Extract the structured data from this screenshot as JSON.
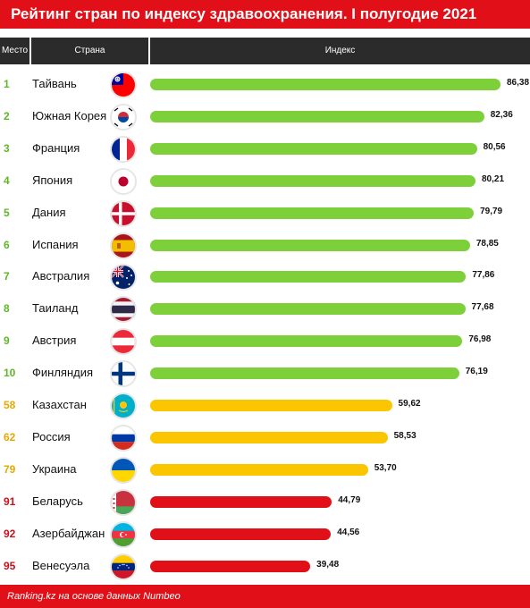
{
  "title": "Рейтинг стран по индексу здравоохранения. I полугодие 2021",
  "header": {
    "place": "Место",
    "country": "Страна",
    "index": "Индекс"
  },
  "footer": "Ranking.kz на основе данных Numbeo",
  "colors": {
    "top": "#7ed03a",
    "mid": "#fbc500",
    "low": "#e10f17",
    "title_bg": "#e10f17",
    "header_bg": "#2b2b2b"
  },
  "chart_data": {
    "type": "bar",
    "title": "Рейтинг стран по индексу здравоохранения. I полугодие 2021",
    "xlabel": "Индекс",
    "ylabel": "Страна",
    "rows": [
      {
        "rank": "1",
        "country": "Тайвань",
        "value": 86.38,
        "label": "86,38",
        "group": "top",
        "flag": "taiwan-flag-icon"
      },
      {
        "rank": "2",
        "country": "Южная Корея",
        "value": 82.36,
        "label": "82,36",
        "group": "top",
        "flag": "south-korea-flag-icon"
      },
      {
        "rank": "3",
        "country": "Франция",
        "value": 80.56,
        "label": "80,56",
        "group": "top",
        "flag": "france-flag-icon"
      },
      {
        "rank": "4",
        "country": "Япония",
        "value": 80.21,
        "label": "80,21",
        "group": "top",
        "flag": "japan-flag-icon"
      },
      {
        "rank": "5",
        "country": "Дания",
        "value": 79.79,
        "label": "79,79",
        "group": "top",
        "flag": "denmark-flag-icon"
      },
      {
        "rank": "6",
        "country": "Испания",
        "value": 78.85,
        "label": "78,85",
        "group": "top",
        "flag": "spain-flag-icon"
      },
      {
        "rank": "7",
        "country": "Австралия",
        "value": 77.86,
        "label": "77,86",
        "group": "top",
        "flag": "australia-flag-icon"
      },
      {
        "rank": "8",
        "country": "Таиланд",
        "value": 77.68,
        "label": "77,68",
        "group": "top",
        "flag": "thailand-flag-icon"
      },
      {
        "rank": "9",
        "country": "Австрия",
        "value": 76.98,
        "label": "76,98",
        "group": "top",
        "flag": "austria-flag-icon"
      },
      {
        "rank": "10",
        "country": "Финляндия",
        "value": 76.19,
        "label": "76,19",
        "group": "top",
        "flag": "finland-flag-icon"
      },
      {
        "rank": "58",
        "country": "Казахстан",
        "value": 59.62,
        "label": "59,62",
        "group": "mid",
        "flag": "kazakhstan-flag-icon"
      },
      {
        "rank": "62",
        "country": "Россия",
        "value": 58.53,
        "label": "58,53",
        "group": "mid",
        "flag": "russia-flag-icon"
      },
      {
        "rank": "79",
        "country": "Украина",
        "value": 53.7,
        "label": "53,70",
        "group": "mid",
        "flag": "ukraine-flag-icon"
      },
      {
        "rank": "91",
        "country": "Беларусь",
        "value": 44.79,
        "label": "44,79",
        "group": "low",
        "flag": "belarus-flag-icon"
      },
      {
        "rank": "92",
        "country": "Азербайджан",
        "value": 44.56,
        "label": "44,56",
        "group": "low",
        "flag": "azerbaijan-flag-icon"
      },
      {
        "rank": "95",
        "country": "Венесуэла",
        "value": 39.48,
        "label": "39,48",
        "group": "low",
        "flag": "venezuela-flag-icon"
      }
    ],
    "xlim": [
      0,
      86.38
    ],
    "grid": false,
    "legend": "none"
  }
}
